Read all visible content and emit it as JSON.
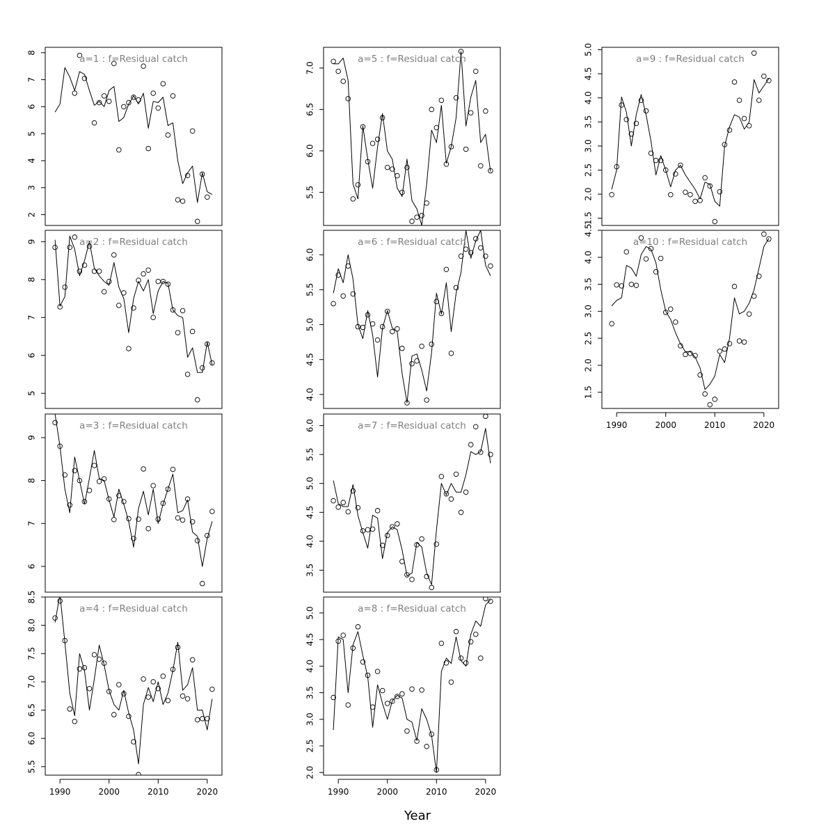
{
  "figure": {
    "xlabel": "Year"
  },
  "chart_data": [
    {
      "type": "line",
      "title": "a=1  :  f=Residual catch",
      "ylim": [
        1.6,
        8.2
      ],
      "yticks": [
        2,
        3,
        4,
        5,
        6,
        7,
        8
      ],
      "xlim": [
        1987,
        2023
      ],
      "xticks": [
        1990,
        2000,
        2010,
        2020
      ],
      "show_xaxis": false,
      "x_start": 1989,
      "fitted": [
        5.8,
        6.1,
        7.45,
        7.1,
        6.6,
        7.3,
        7.2,
        6.6,
        6.05,
        6.2,
        6.0,
        6.6,
        6.75,
        5.45,
        5.6,
        6.1,
        6.4,
        6.1,
        6.5,
        5.2,
        6.2,
        6.15,
        6.35,
        5.3,
        5.4,
        4.0,
        3.15,
        3.55,
        3.8,
        2.45,
        3.55,
        2.85,
        2.75
      ],
      "observed": [
        null,
        null,
        null,
        null,
        6.5,
        7.9,
        7.05,
        null,
        5.4,
        6.15,
        6.4,
        6.2,
        7.6,
        4.4,
        6.0,
        6.15,
        6.35,
        6.25,
        7.5,
        4.45,
        6.5,
        5.95,
        6.85,
        4.95,
        6.4,
        2.55,
        2.5,
        3.45,
        5.1,
        1.75,
        3.5,
        2.65,
        null
      ]
    },
    {
      "type": "line",
      "title": "a=2  :  f=Residual catch",
      "ylim": [
        4.6,
        9.3
      ],
      "yticks": [
        5,
        6,
        7,
        8,
        9
      ],
      "xlim": [
        1987,
        2023
      ],
      "xticks": [
        1990,
        2000,
        2010,
        2020
      ],
      "show_xaxis": false,
      "x_start": 1989,
      "fitted": [
        9.05,
        7.3,
        7.55,
        9.15,
        8.8,
        8.1,
        8.5,
        9.0,
        8.3,
        8.1,
        7.95,
        7.85,
        8.45,
        7.8,
        7.5,
        6.6,
        7.5,
        7.95,
        7.7,
        8.0,
        7.1,
        7.7,
        7.95,
        7.9,
        7.2,
        7.05,
        7.0,
        5.95,
        6.2,
        5.55,
        5.55,
        6.35,
        5.75
      ],
      "observed": [
        8.85,
        7.28,
        7.8,
        8.85,
        9.12,
        8.22,
        8.38,
        8.88,
        8.22,
        8.22,
        7.68,
        7.95,
        8.65,
        7.32,
        7.65,
        6.18,
        7.25,
        7.98,
        8.15,
        8.25,
        7.0,
        7.95,
        7.95,
        7.88,
        7.2,
        6.6,
        7.18,
        5.5,
        6.63,
        4.83,
        5.67,
        6.3,
        5.8
      ]
    },
    {
      "type": "line",
      "title": "a=3  :  f=Residual catch",
      "ylim": [
        5.4,
        9.55
      ],
      "yticks": [
        6,
        7,
        8,
        9
      ],
      "xlim": [
        1987,
        2023
      ],
      "xticks": [
        1990,
        2000,
        2010,
        2020
      ],
      "show_xaxis": false,
      "x_start": 1989,
      "fitted": [
        9.55,
        8.8,
        7.8,
        7.25,
        8.55,
        8.0,
        7.45,
        8.05,
        8.7,
        8.05,
        8.0,
        7.55,
        7.15,
        7.8,
        7.45,
        7.05,
        6.45,
        7.35,
        7.75,
        7.2,
        7.8,
        7.0,
        7.45,
        7.8,
        8.15,
        7.25,
        7.3,
        7.55,
        6.8,
        6.7,
        6.0,
        6.65,
        7.05
      ],
      "observed": [
        9.35,
        8.8,
        8.13,
        7.43,
        8.23,
        8.0,
        7.51,
        7.77,
        8.35,
        7.98,
        8.04,
        7.57,
        7.09,
        7.65,
        7.51,
        7.11,
        6.65,
        7.1,
        8.27,
        6.88,
        7.88,
        7.1,
        7.47,
        7.8,
        8.26,
        7.13,
        7.08,
        7.57,
        7.04,
        6.6,
        5.6,
        6.72,
        7.28
      ]
    },
    {
      "type": "line",
      "title": "a=4  :  f=Residual catch",
      "ylim": [
        5.35,
        8.5
      ],
      "yticks": [
        5.5,
        6.0,
        6.5,
        7.0,
        7.5,
        8.0,
        8.5
      ],
      "xlim": [
        1987,
        2023
      ],
      "xticks": [
        1990,
        2000,
        2010,
        2020
      ],
      "show_xaxis": true,
      "x_start": 1989,
      "fitted": [
        8.05,
        8.55,
        7.7,
        6.8,
        6.4,
        7.5,
        7.2,
        6.5,
        7.05,
        7.65,
        7.3,
        6.85,
        6.6,
        6.5,
        6.85,
        6.45,
        6.15,
        5.55,
        6.6,
        6.9,
        6.65,
        7.0,
        6.6,
        6.8,
        7.2,
        7.7,
        6.85,
        6.95,
        7.25,
        6.5,
        6.5,
        6.15,
        6.7
      ],
      "observed": [
        8.13,
        8.43,
        7.73,
        6.52,
        6.3,
        7.23,
        7.25,
        6.88,
        7.48,
        7.4,
        7.33,
        6.83,
        6.42,
        6.95,
        6.79,
        6.39,
        5.94,
        5.36,
        7.05,
        6.73,
        7.0,
        6.88,
        7.1,
        6.67,
        7.22,
        7.61,
        6.75,
        6.7,
        7.39,
        6.33,
        6.35,
        6.35,
        6.87
      ]
    },
    {
      "type": "line",
      "title": "a=5  :  f=Residual catch",
      "ylim": [
        5.1,
        7.25
      ],
      "yticks": [
        5.5,
        6.0,
        6.5,
        7.0
      ],
      "xlim": [
        1987,
        2023
      ],
      "xticks": [
        1990,
        2000,
        2010,
        2020
      ],
      "show_xaxis": false,
      "x_start": 1989,
      "fitted": [
        7.05,
        7.05,
        7.12,
        6.85,
        5.6,
        5.42,
        6.3,
        5.9,
        5.55,
        6.05,
        6.45,
        6.0,
        5.9,
        5.55,
        5.45,
        5.9,
        5.4,
        5.3,
        5.1,
        5.6,
        6.25,
        6.1,
        6.55,
        5.85,
        6.05,
        6.4,
        7.2,
        6.3,
        6.65,
        6.85,
        6.1,
        6.2,
        5.75
      ],
      "observed": [
        7.08,
        6.96,
        6.84,
        6.63,
        5.42,
        5.59,
        6.29,
        5.87,
        6.09,
        6.14,
        6.4,
        5.8,
        5.78,
        5.7,
        5.5,
        5.8,
        5.15,
        5.2,
        5.22,
        5.37,
        6.5,
        6.28,
        6.61,
        5.84,
        6.05,
        6.64,
        7.2,
        6.02,
        6.46,
        6.96,
        5.82,
        6.48,
        5.76
      ]
    },
    {
      "type": "line",
      "title": "a=6  :  f=Residual catch",
      "ylim": [
        3.8,
        6.35
      ],
      "yticks": [
        4.0,
        4.5,
        5.0,
        5.5,
        6.0
      ],
      "xlim": [
        1987,
        2023
      ],
      "xticks": [
        1990,
        2000,
        2010,
        2020
      ],
      "show_xaxis": false,
      "x_start": 1989,
      "fitted": [
        5.45,
        5.8,
        5.6,
        6.0,
        5.65,
        5.0,
        4.8,
        5.2,
        4.85,
        4.25,
        4.95,
        5.2,
        4.95,
        4.9,
        4.3,
        3.88,
        4.55,
        4.58,
        4.35,
        4.05,
        4.6,
        5.45,
        5.15,
        5.6,
        4.9,
        5.45,
        5.75,
        6.35,
        5.95,
        6.2,
        6.35,
        5.85,
        5.7
      ],
      "observed": [
        5.3,
        5.71,
        5.41,
        5.84,
        5.44,
        4.97,
        4.96,
        5.14,
        5.01,
        4.78,
        4.97,
        5.19,
        4.9,
        4.94,
        4.66,
        3.88,
        4.44,
        4.48,
        4.69,
        3.92,
        4.72,
        5.33,
        5.16,
        5.79,
        4.59,
        5.53,
        5.98,
        6.08,
        6.03,
        6.23,
        6.1,
        5.98,
        5.84
      ]
    },
    {
      "type": "line",
      "title": "a=7  :  f=Residual catch",
      "ylim": [
        3.12,
        6.2
      ],
      "yticks": [
        3.5,
        4.0,
        4.5,
        5.0,
        5.5,
        6.0
      ],
      "xlim": [
        1987,
        2023
      ],
      "xticks": [
        1990,
        2000,
        2010,
        2020
      ],
      "show_xaxis": false,
      "x_start": 1989,
      "fitted": [
        5.05,
        4.65,
        4.6,
        4.6,
        4.98,
        4.45,
        4.15,
        3.88,
        4.45,
        4.4,
        3.7,
        4.15,
        4.25,
        4.2,
        3.85,
        3.4,
        3.45,
        3.98,
        3.9,
        3.45,
        3.25,
        4.2,
        5.0,
        4.8,
        5.0,
        4.85,
        4.85,
        5.15,
        5.55,
        5.5,
        5.55,
        5.95,
        5.35
      ],
      "observed": [
        4.7,
        4.59,
        4.67,
        4.51,
        4.87,
        4.58,
        4.18,
        4.2,
        4.21,
        4.53,
        3.93,
        4.1,
        4.25,
        4.3,
        3.65,
        3.42,
        3.34,
        3.94,
        4.04,
        3.39,
        3.2,
        3.95,
        5.12,
        4.82,
        4.73,
        5.16,
        4.5,
        4.85,
        5.67,
        5.98,
        5.54,
        6.16,
        5.5
      ]
    },
    {
      "type": "line",
      "title": "a=8  :  f=Residual catch",
      "ylim": [
        1.95,
        5.3
      ],
      "yticks": [
        2.0,
        2.5,
        3.0,
        3.5,
        4.0,
        4.5,
        5.0
      ],
      "xlim": [
        1987,
        2023
      ],
      "xticks": [
        1990,
        2000,
        2010,
        2020
      ],
      "show_xaxis": true,
      "x_start": 1989,
      "fitted": [
        2.8,
        4.55,
        4.5,
        3.5,
        4.4,
        4.65,
        4.2,
        3.8,
        2.85,
        3.65,
        3.3,
        3.0,
        3.35,
        3.45,
        3.4,
        3.0,
        2.95,
        2.6,
        3.2,
        3.0,
        2.7,
        2.0,
        3.9,
        4.15,
        4.05,
        4.55,
        4.1,
        4.0,
        4.6,
        4.85,
        4.75,
        5.15,
        5.25
      ],
      "observed": [
        3.41,
        4.47,
        4.58,
        3.27,
        4.34,
        4.74,
        4.08,
        3.83,
        3.23,
        3.9,
        3.54,
        3.3,
        3.34,
        3.43,
        3.48,
        2.78,
        3.57,
        2.59,
        3.55,
        2.49,
        2.72,
        2.05,
        4.43,
        4.06,
        3.7,
        4.65,
        4.15,
        4.06,
        4.46,
        4.6,
        4.15,
        5.27,
        5.22
      ]
    },
    {
      "type": "line",
      "title": "a=9  :  f=Residual catch",
      "ylim": [
        1.35,
        5.05
      ],
      "yticks": [
        1.5,
        2.0,
        2.5,
        3.0,
        3.5,
        4.0,
        4.5,
        5.0
      ],
      "xlim": [
        1987,
        2023
      ],
      "xticks": [
        1990,
        2000,
        2010,
        2020
      ],
      "show_xaxis": false,
      "x_start": 1989,
      "fitted": [
        2.1,
        2.5,
        4.02,
        3.7,
        3.0,
        3.65,
        4.07,
        3.65,
        3.1,
        2.4,
        2.8,
        2.5,
        2.15,
        2.5,
        2.6,
        2.4,
        2.25,
        2.1,
        1.9,
        2.25,
        2.2,
        1.85,
        1.75,
        3.0,
        3.4,
        3.65,
        3.6,
        3.35,
        3.5,
        4.38,
        4.1,
        4.25,
        4.4
      ],
      "observed": [
        1.99,
        2.57,
        3.85,
        3.55,
        3.25,
        3.47,
        3.95,
        3.73,
        2.85,
        2.7,
        2.7,
        2.5,
        1.99,
        2.42,
        2.6,
        2.04,
        1.99,
        1.85,
        1.87,
        2.34,
        2.17,
        1.43,
        2.05,
        3.03,
        3.33,
        4.33,
        3.95,
        3.57,
        3.42,
        4.93,
        3.95,
        4.45,
        4.36
      ]
    },
    {
      "type": "line",
      "title": "a=10  :  f=Residual catch",
      "ylim": [
        1.2,
        4.5
      ],
      "yticks": [
        1.5,
        2.0,
        2.5,
        3.0,
        3.5,
        4.0,
        4.5
      ],
      "xlim": [
        1987,
        2023
      ],
      "xticks": [
        1990,
        2000,
        2010,
        2020
      ],
      "show_xaxis": true,
      "x_start": 1989,
      "fitted": [
        3.1,
        3.2,
        3.25,
        3.85,
        3.8,
        3.65,
        4.05,
        4.2,
        4.15,
        3.9,
        3.4,
        3.0,
        2.85,
        2.6,
        2.4,
        2.25,
        2.25,
        2.15,
        1.95,
        1.55,
        1.65,
        1.8,
        2.2,
        2.05,
        2.5,
        3.25,
        2.95,
        3.0,
        3.15,
        3.4,
        3.8,
        4.2,
        4.35
      ],
      "observed": [
        2.77,
        3.49,
        3.47,
        4.1,
        3.5,
        3.48,
        4.36,
        3.97,
        4.16,
        3.73,
        3.98,
        2.98,
        3.04,
        2.8,
        2.36,
        2.2,
        2.22,
        2.18,
        1.82,
        1.47,
        1.27,
        1.37,
        2.26,
        2.3,
        2.4,
        3.46,
        2.45,
        2.43,
        2.95,
        3.28,
        3.65,
        4.43,
        4.34
      ]
    }
  ]
}
